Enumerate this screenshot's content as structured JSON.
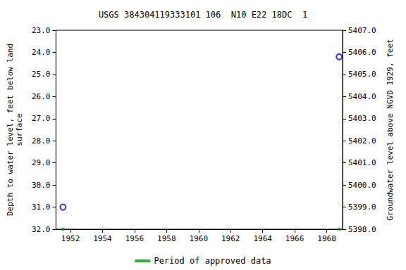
{
  "chart_data": {
    "type": "scatter",
    "title": "USGS 384304119333101 106  N10 E22 18DC  1",
    "ylabel": "Depth to water level, feet below land\nsurface",
    "y2label": "Groundwater level above NGVD 1929, feet",
    "xlim": [
      1951.09,
      1968.99
    ],
    "xticks": [
      1952,
      1954,
      1956,
      1958,
      1960,
      1962,
      1964,
      1966,
      1968
    ],
    "ylim": [
      32,
      23
    ],
    "yticks": [
      {
        "value": 23,
        "label": "23.0"
      },
      {
        "value": 24,
        "label": "24.0"
      },
      {
        "value": 25,
        "label": "25.0"
      },
      {
        "value": 26,
        "label": "26.0"
      },
      {
        "value": 27,
        "label": "27.0"
      },
      {
        "value": 28,
        "label": "28.0"
      },
      {
        "value": 29,
        "label": "29.0"
      },
      {
        "value": 30,
        "label": "30.0"
      },
      {
        "value": 31,
        "label": "31.0"
      },
      {
        "value": 32,
        "label": "32.0"
      }
    ],
    "y2lim": [
      5398,
      5407
    ],
    "y2ticks": [
      {
        "value": 5398,
        "label": "5398.0"
      },
      {
        "value": 5399,
        "label": "5399.0"
      },
      {
        "value": 5400,
        "label": "5400.0"
      },
      {
        "value": 5401,
        "label": "5401.0"
      },
      {
        "value": 5402,
        "label": "5402.0"
      },
      {
        "value": 5403,
        "label": "5403.0"
      },
      {
        "value": 5404,
        "label": "5404.0"
      },
      {
        "value": 5405,
        "label": "5405.0"
      },
      {
        "value": 5406,
        "label": "5406.0"
      },
      {
        "value": 5407,
        "label": "5407.0"
      }
    ],
    "grid": false,
    "legend": "bottom",
    "series": [
      {
        "color": "#0000ff",
        "marker": "circle_open",
        "x": [
          1951.53,
          1968.78
        ],
        "values": [
          31.0,
          24.2
        ]
      },
      {
        "name": "Period of approved data",
        "color": "#00a000",
        "marker": "square",
        "x": [
          1951.53,
          1968.78
        ],
        "values": [
          32,
          32
        ]
      }
    ]
  }
}
